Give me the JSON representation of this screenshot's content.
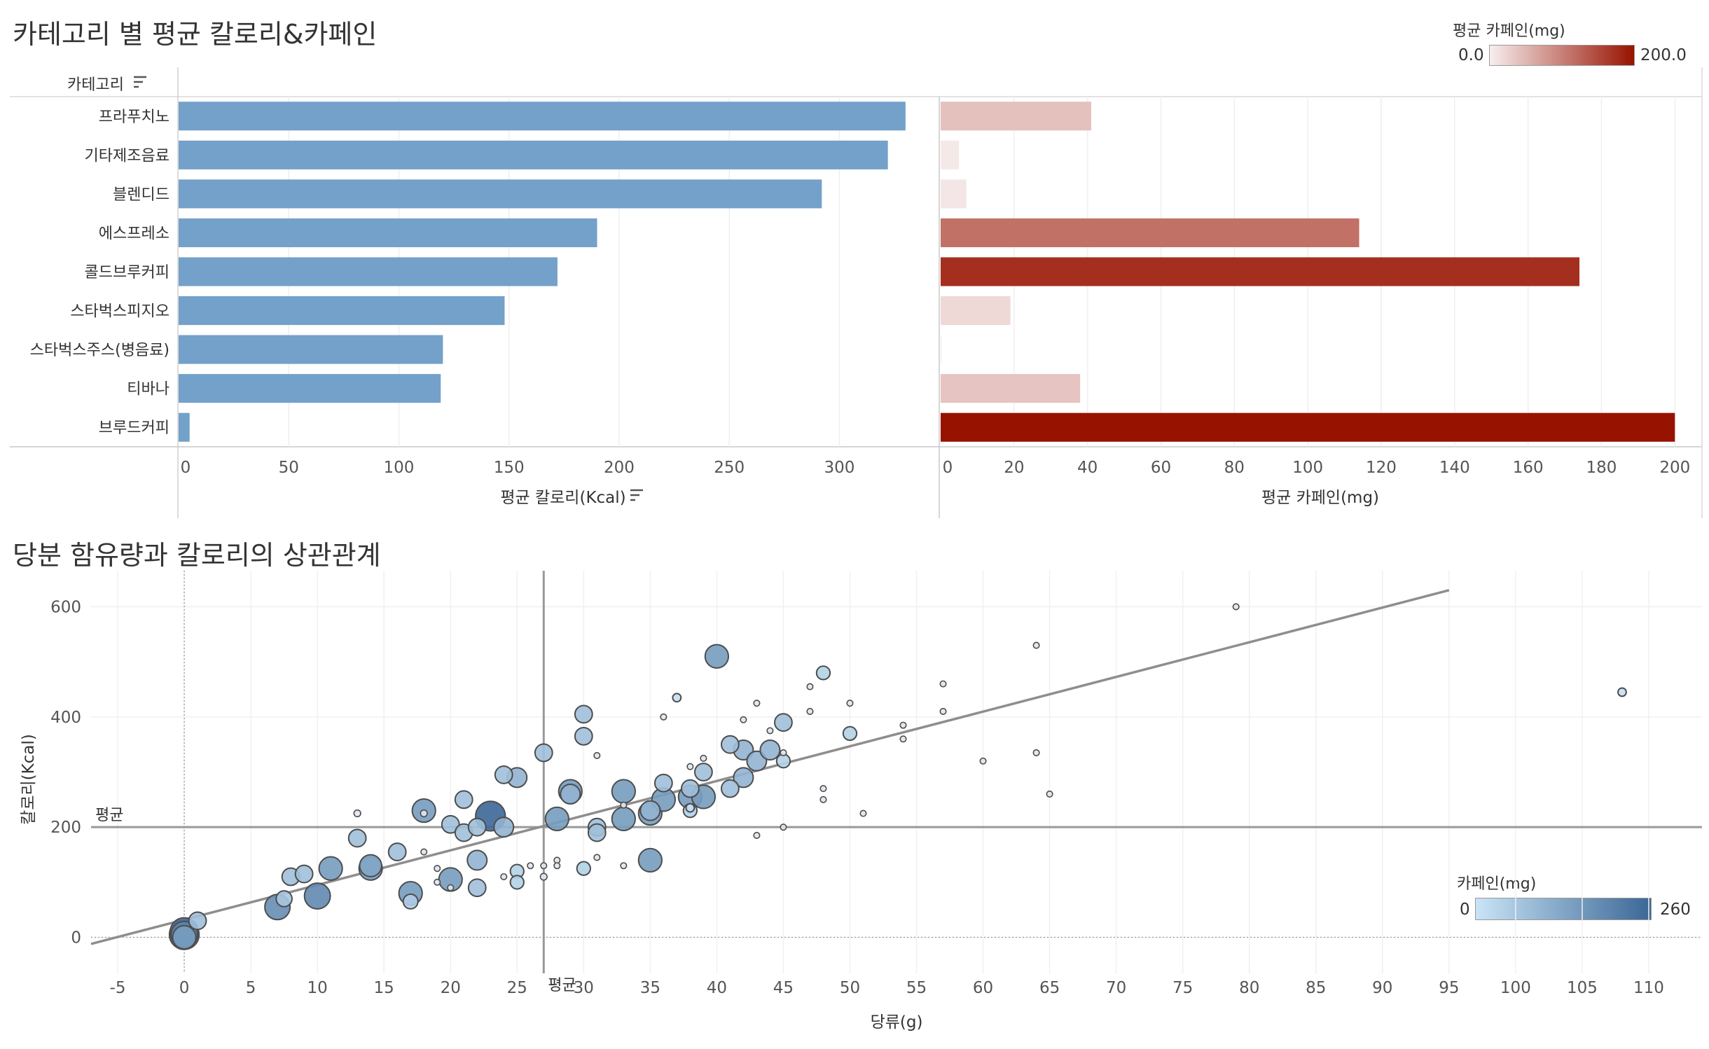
{
  "top_section": {
    "title": "카테고리 별 평균 칼로리&카페인",
    "category_header": "카테고리",
    "legend": {
      "title": "평균 카페인(mg)",
      "min_label": "0.0",
      "max_label": "200.0",
      "color_low": "#f7eeee",
      "color_high": "#981200"
    }
  },
  "bottom_section": {
    "title": "당분 함유량과 칼로리의 상관관계",
    "legend": {
      "title": "카페인(mg)",
      "min_label": "0",
      "max_label": "260",
      "color_low": "#c9e4f6",
      "color_high": "#3b6796"
    }
  },
  "chart_data": [
    {
      "type": "bar",
      "categories": [
        "프라푸치노",
        "기타제조음료",
        "블렌디드",
        "에스프레소",
        "콜드브루커피",
        "스타벅스피지오",
        "스타벅스주스(병음료)",
        "티바나",
        "브루드커피"
      ],
      "values": [
        330,
        322,
        292,
        190,
        172,
        148,
        120,
        119,
        5
      ],
      "xlabel": "평균 칼로리(Kcal)",
      "xlim": [
        0,
        345
      ],
      "xticks": [
        0,
        50,
        100,
        150,
        200,
        250,
        300
      ],
      "color": "#73a1c9",
      "sort_icon": true
    },
    {
      "type": "bar",
      "categories": [
        "프라푸치노",
        "기타제조음료",
        "블렌디드",
        "에스프레소",
        "콜드브루커피",
        "스타벅스피지오",
        "스타벅스주스(병음료)",
        "티바나",
        "브루드커피"
      ],
      "values": [
        41,
        5,
        7,
        114,
        174,
        19,
        0,
        38,
        200
      ],
      "xlabel": "평균 카페인(mg)",
      "xlim": [
        0,
        207
      ],
      "xticks": [
        0,
        20,
        40,
        60,
        80,
        100,
        120,
        140,
        160,
        180,
        200
      ],
      "color_scale": [
        "#f7eeee",
        "#981200"
      ]
    },
    {
      "type": "scatter",
      "xlabel": "당류(g)",
      "ylabel": "칼로리(Kcal)",
      "xlim": [
        -7,
        114
      ],
      "ylim": [
        -40,
        640
      ],
      "xticks": [
        -5,
        0,
        5,
        10,
        15,
        20,
        25,
        30,
        35,
        40,
        45,
        50,
        55,
        60,
        65,
        70,
        75,
        80,
        85,
        90,
        95,
        100,
        105,
        110
      ],
      "yticks": [
        0,
        200,
        400,
        600
      ],
      "reference_lines": {
        "x_mean": 27,
        "y_mean": 200,
        "label": "평균"
      },
      "trend_line": {
        "x": [
          -7,
          95
        ],
        "y": [
          -12,
          630
        ]
      },
      "size_encodes": "카페인(mg)",
      "color_encodes": "카페인(mg)",
      "points": [
        {
          "x": 0,
          "y": 5,
          "c": 260
        },
        {
          "x": 0,
          "y": 10,
          "c": 230
        },
        {
          "x": 0,
          "y": 5,
          "c": 200
        },
        {
          "x": 0,
          "y": 0,
          "c": 150
        },
        {
          "x": 1,
          "y": 30,
          "c": 75
        },
        {
          "x": 7,
          "y": 55,
          "c": 180
        },
        {
          "x": 7.5,
          "y": 70,
          "c": 60
        },
        {
          "x": 8,
          "y": 110,
          "c": 75
        },
        {
          "x": 9,
          "y": 115,
          "c": 75
        },
        {
          "x": 10,
          "y": 75,
          "c": 190
        },
        {
          "x": 11,
          "y": 125,
          "c": 150
        },
        {
          "x": 13,
          "y": 180,
          "c": 75
        },
        {
          "x": 13,
          "y": 225,
          "c": 5
        },
        {
          "x": 14,
          "y": 125,
          "c": 150
        },
        {
          "x": 14,
          "y": 130,
          "c": 130
        },
        {
          "x": 16,
          "y": 155,
          "c": 75
        },
        {
          "x": 17,
          "y": 80,
          "c": 150
        },
        {
          "x": 17,
          "y": 65,
          "c": 50
        },
        {
          "x": 18,
          "y": 230,
          "c": 150
        },
        {
          "x": 18,
          "y": 225,
          "c": 5
        },
        {
          "x": 18,
          "y": 155,
          "c": 3
        },
        {
          "x": 19,
          "y": 100,
          "c": 3
        },
        {
          "x": 19,
          "y": 125,
          "c": 3
        },
        {
          "x": 20,
          "y": 105,
          "c": 150
        },
        {
          "x": 20,
          "y": 205,
          "c": 75
        },
        {
          "x": 20,
          "y": 90,
          "c": 3
        },
        {
          "x": 21,
          "y": 190,
          "c": 75
        },
        {
          "x": 21,
          "y": 250,
          "c": 75
        },
        {
          "x": 22,
          "y": 200,
          "c": 75
        },
        {
          "x": 22,
          "y": 140,
          "c": 100
        },
        {
          "x": 22,
          "y": 90,
          "c": 75
        },
        {
          "x": 23,
          "y": 220,
          "c": 260
        },
        {
          "x": 24,
          "y": 200,
          "c": 100
        },
        {
          "x": 24,
          "y": 295,
          "c": 75
        },
        {
          "x": 24,
          "y": 110,
          "c": 3
        },
        {
          "x": 25,
          "y": 290,
          "c": 100
        },
        {
          "x": 25,
          "y": 120,
          "c": 40
        },
        {
          "x": 25,
          "y": 100,
          "c": 40
        },
        {
          "x": 26,
          "y": 130,
          "c": 3
        },
        {
          "x": 27,
          "y": 335,
          "c": 75
        },
        {
          "x": 27,
          "y": 110,
          "c": 5
        },
        {
          "x": 27,
          "y": 130,
          "c": 3
        },
        {
          "x": 28,
          "y": 215,
          "c": 150
        },
        {
          "x": 28,
          "y": 140,
          "c": 3
        },
        {
          "x": 28,
          "y": 130,
          "c": 3
        },
        {
          "x": 29,
          "y": 265,
          "c": 150
        },
        {
          "x": 29,
          "y": 260,
          "c": 100
        },
        {
          "x": 30,
          "y": 405,
          "c": 75
        },
        {
          "x": 30,
          "y": 365,
          "c": 75
        },
        {
          "x": 30,
          "y": 125,
          "c": 40
        },
        {
          "x": 31,
          "y": 200,
          "c": 75
        },
        {
          "x": 31,
          "y": 190,
          "c": 75
        },
        {
          "x": 31,
          "y": 330,
          "c": 3
        },
        {
          "x": 31,
          "y": 145,
          "c": 3
        },
        {
          "x": 33,
          "y": 265,
          "c": 150
        },
        {
          "x": 33,
          "y": 215,
          "c": 150
        },
        {
          "x": 33,
          "y": 240,
          "c": 3
        },
        {
          "x": 33,
          "y": 130,
          "c": 3
        },
        {
          "x": 35,
          "y": 225,
          "c": 150
        },
        {
          "x": 35,
          "y": 140,
          "c": 150
        },
        {
          "x": 35,
          "y": 230,
          "c": 100
        },
        {
          "x": 36,
          "y": 280,
          "c": 75
        },
        {
          "x": 36,
          "y": 250,
          "c": 150
        },
        {
          "x": 36,
          "y": 400,
          "c": 3
        },
        {
          "x": 37,
          "y": 435,
          "c": 10
        },
        {
          "x": 38,
          "y": 230,
          "c": 40
        },
        {
          "x": 38,
          "y": 235,
          "c": 10
        },
        {
          "x": 38,
          "y": 255,
          "c": 150
        },
        {
          "x": 38,
          "y": 270,
          "c": 75
        },
        {
          "x": 38,
          "y": 310,
          "c": 3
        },
        {
          "x": 39,
          "y": 300,
          "c": 75
        },
        {
          "x": 39,
          "y": 325,
          "c": 3
        },
        {
          "x": 39,
          "y": 255,
          "c": 150
        },
        {
          "x": 40,
          "y": 510,
          "c": 150
        },
        {
          "x": 41,
          "y": 270,
          "c": 75
        },
        {
          "x": 41,
          "y": 350,
          "c": 75
        },
        {
          "x": 42,
          "y": 340,
          "c": 100
        },
        {
          "x": 42,
          "y": 290,
          "c": 100
        },
        {
          "x": 42,
          "y": 395,
          "c": 3
        },
        {
          "x": 43,
          "y": 320,
          "c": 100
        },
        {
          "x": 43,
          "y": 425,
          "c": 3
        },
        {
          "x": 43,
          "y": 185,
          "c": 3
        },
        {
          "x": 44,
          "y": 340,
          "c": 100
        },
        {
          "x": 44,
          "y": 375,
          "c": 3
        },
        {
          "x": 45,
          "y": 390,
          "c": 75
        },
        {
          "x": 45,
          "y": 320,
          "c": 40
        },
        {
          "x": 45,
          "y": 335,
          "c": 3
        },
        {
          "x": 45,
          "y": 200,
          "c": 3
        },
        {
          "x": 47,
          "y": 455,
          "c": 3
        },
        {
          "x": 47,
          "y": 410,
          "c": 3
        },
        {
          "x": 48,
          "y": 480,
          "c": 40
        },
        {
          "x": 48,
          "y": 270,
          "c": 3
        },
        {
          "x": 48,
          "y": 250,
          "c": 3
        },
        {
          "x": 50,
          "y": 370,
          "c": 40
        },
        {
          "x": 50,
          "y": 425,
          "c": 3
        },
        {
          "x": 51,
          "y": 225,
          "c": 3
        },
        {
          "x": 54,
          "y": 385,
          "c": 3
        },
        {
          "x": 54,
          "y": 360,
          "c": 3
        },
        {
          "x": 57,
          "y": 460,
          "c": 3
        },
        {
          "x": 57,
          "y": 410,
          "c": 3
        },
        {
          "x": 60,
          "y": 320,
          "c": 3
        },
        {
          "x": 64,
          "y": 530,
          "c": 3
        },
        {
          "x": 64,
          "y": 335,
          "c": 3
        },
        {
          "x": 65,
          "y": 260,
          "c": 3
        },
        {
          "x": 79,
          "y": 600,
          "c": 3
        },
        {
          "x": 108,
          "y": 445,
          "c": 10
        }
      ]
    }
  ]
}
